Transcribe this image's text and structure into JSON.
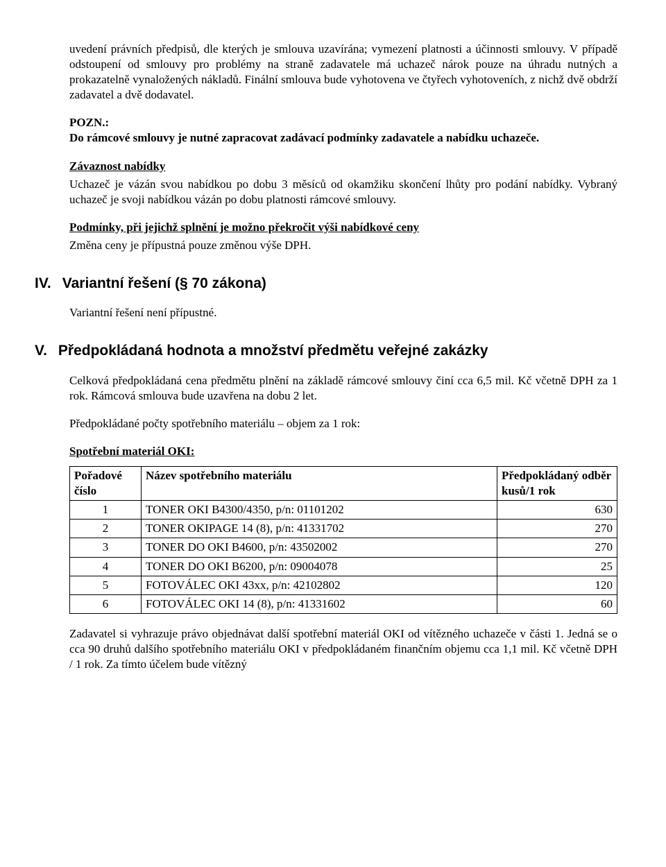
{
  "intro": {
    "p1": "uvedení právních předpisů, dle kterých je smlouva uzavírána; vymezení platnosti a účinnosti smlouvy. V případě odstoupení od smlouvy pro problémy na straně zadavatele má uchazeč nárok pouze na úhradu nutných a prokazatelně vynaložených nákladů. Finální smlouva bude vyhotovena ve čtyřech vyhotoveních, z nichž dvě obdrží zadavatel a dvě dodavatel."
  },
  "note": {
    "label": "POZN.:",
    "text": "Do rámcové smlouvy je nutné zapracovat zadávací podmínky zadavatele a nabídku uchazeče."
  },
  "bindingOffer": {
    "heading": "Závaznost nabídky",
    "p1": "Uchazeč je vázán svou nabídkou po dobu 3 měsíců od okamžiku skončení lhůty pro podání nabídky. Vybraný uchazeč je svoji nabídkou vázán po dobu platnosti rámcové smlouvy."
  },
  "conditions": {
    "heading": "Podmínky, při jejichž splnění je možno překročit výši nabídkové ceny",
    "p1": "Změna ceny je přípustná pouze změnou výše DPH."
  },
  "sectionIV": {
    "num": "IV.",
    "title": "Variantní řešení (§ 70 zákona)",
    "p1": "Variantní řešení není přípustné."
  },
  "sectionV": {
    "num": "V.",
    "title": "Předpokládaná hodnota a množství předmětu veřejné zakázky",
    "p1": "Celková předpokládaná cena předmětu plnění na základě rámcové smlouvy činí cca 6,5 mil. Kč včetně DPH za 1 rok. Rámcová smlouva bude uzavřena na dobu 2 let.",
    "p2": "Předpokládané počty spotřebního materiálu – objem za 1 rok:",
    "tableHeading": "Spotřební materiál OKI:",
    "table": {
      "col1": "Pořadové číslo",
      "col2": "Název spotřebního materiálu",
      "col3": "Předpokládaný odběr kusů/1 rok",
      "rows": [
        {
          "idx": "1",
          "name": "TONER OKI B4300/4350, p/n: 01101202",
          "qty": "630"
        },
        {
          "idx": "2",
          "name": "TONER OKIPAGE 14 (8), p/n: 41331702",
          "qty": "270"
        },
        {
          "idx": "3",
          "name": "TONER DO OKI B4600, p/n: 43502002",
          "qty": "270"
        },
        {
          "idx": "4",
          "name": "TONER DO OKI B6200, p/n: 09004078",
          "qty": "25"
        },
        {
          "idx": "5",
          "name": "FOTOVÁLEC OKI 43xx, p/n: 42102802",
          "qty": "120"
        },
        {
          "idx": "6",
          "name": "FOTOVÁLEC OKI 14 (8), p/n: 41331602",
          "qty": "60"
        }
      ]
    },
    "p3": "Zadavatel si vyhrazuje právo objednávat další spotřební materiál OKI od vítězného uchazeče v části 1. Jedná se o cca 90 druhů dalšího spotřebního materiálu OKI v předpokládaném finančním objemu cca 1,1 mil. Kč včetně DPH / 1 rok. Za tímto účelem bude vítězný"
  }
}
